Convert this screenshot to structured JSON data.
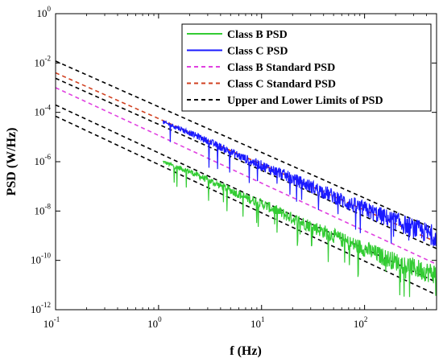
{
  "chart_data": {
    "type": "line",
    "xscale": "log",
    "yscale": "log",
    "xlim": [
      0.1,
      500
    ],
    "ylim": [
      1e-12,
      1
    ],
    "xlabel": "f (Hz)",
    "ylabel": "PSD (W/Hz)",
    "x_ticks": [
      {
        "base": "10",
        "exp": "-1"
      },
      {
        "base": "10",
        "exp": "0"
      },
      {
        "base": "10",
        "exp": "1"
      },
      {
        "base": "10",
        "exp": "2"
      }
    ],
    "y_ticks": [
      {
        "base": "10",
        "exp": "0"
      },
      {
        "base": "10",
        "exp": "-2"
      },
      {
        "base": "10",
        "exp": "-4"
      },
      {
        "base": "10",
        "exp": "-6"
      },
      {
        "base": "10",
        "exp": "-8"
      },
      {
        "base": "10",
        "exp": "-10"
      },
      {
        "base": "10",
        "exp": "-12"
      }
    ],
    "legend_position": "top-right",
    "series": [
      {
        "name": "Class B PSD",
        "color": "#33cc33",
        "style": "solid-noisy",
        "x": [
          1.1,
          1.5,
          2,
          3,
          5,
          7,
          10,
          15,
          20,
          30,
          50,
          70,
          100,
          150,
          200,
          300,
          400,
          500
        ],
        "y": [
          1e-06,
          6e-07,
          4e-07,
          1.8e-07,
          7e-08,
          3.5e-08,
          2e-08,
          9e-09,
          5e-09,
          2.5e-09,
          1e-09,
          5e-10,
          3e-10,
          1.4e-10,
          9e-11,
          5e-11,
          3.5e-11,
          2.8e-11
        ]
      },
      {
        "name": "Class C PSD",
        "color": "#1a1aff",
        "style": "solid-noisy",
        "x": [
          1.1,
          1.5,
          2,
          3,
          5,
          7,
          10,
          15,
          20,
          30,
          50,
          70,
          100,
          150,
          200,
          300,
          400,
          500
        ],
        "y": [
          4e-05,
          2.5e-05,
          1.5e-05,
          7e-06,
          2.5e-06,
          1.3e-06,
          7e-07,
          3.5e-07,
          2e-07,
          1e-07,
          4e-08,
          2e-08,
          1.2e-08,
          6e-09,
          4e-09,
          2e-09,
          1.3e-09,
          1e-09
        ]
      },
      {
        "name": "Class B Standard PSD",
        "color": "#e040e0",
        "style": "dashed",
        "x": [
          0.1,
          500
        ],
        "y": [
          0.001,
          7e-11
        ]
      },
      {
        "name": "Class C Standard PSD",
        "color": "#d04020",
        "style": "dashed",
        "x": [
          0.1,
          500
        ],
        "y": [
          0.004,
          5.5e-10
        ]
      },
      {
        "name": "Upper and Lower Limits of PSD",
        "color": "#000000",
        "style": "dashed",
        "lines": [
          {
            "x": [
              0.1,
              500
            ],
            "y": [
              0.012,
              1.7e-09
            ]
          },
          {
            "x": [
              0.1,
              500
            ],
            "y": [
              0.0024,
              3e-10
            ]
          },
          {
            "x": [
              0.1,
              500
            ],
            "y": [
              0.0002,
              1.3e-11
            ]
          },
          {
            "x": [
              0.1,
              500
            ],
            "y": [
              7e-05,
              4e-12
            ]
          }
        ]
      }
    ]
  }
}
